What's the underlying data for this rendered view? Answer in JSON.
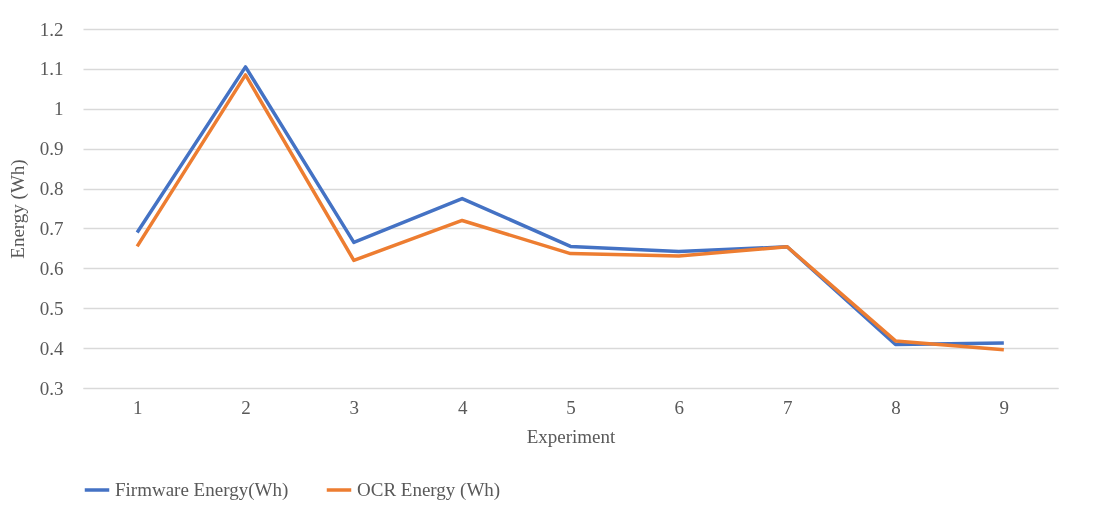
{
  "chart_data": {
    "type": "line",
    "xlabel": "Experiment",
    "ylabel": "Energy (Wh)",
    "categories": [
      "1",
      "2",
      "3",
      "4",
      "5",
      "6",
      "7",
      "8",
      "9"
    ],
    "series": [
      {
        "name": "Firmware Energy(Wh)",
        "color": "#4472c4",
        "values": [
          0.69,
          1.105,
          0.665,
          0.775,
          0.655,
          0.642,
          0.654,
          0.409,
          0.413
        ]
      },
      {
        "name": "OCR Energy (Wh)",
        "color": "#ed7d31",
        "values": [
          0.655,
          1.085,
          0.62,
          0.72,
          0.637,
          0.631,
          0.654,
          0.418,
          0.396
        ]
      }
    ],
    "ylim": [
      0.3,
      1.2
    ],
    "yticks": [
      0.3,
      0.4,
      0.5,
      0.6,
      0.7,
      0.8,
      0.9,
      1,
      1.1,
      1.2
    ],
    "grid": "y",
    "legend": "bottom",
    "marker": "none",
    "line_style": "solid"
  }
}
